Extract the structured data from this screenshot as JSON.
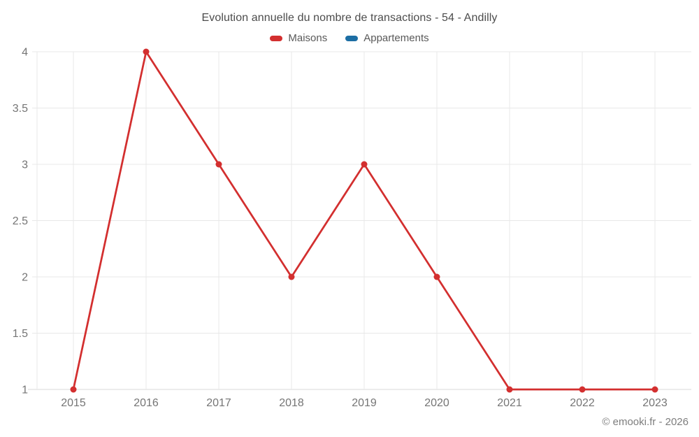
{
  "title": "Evolution annuelle du nombre de transactions - 54 - Andilly",
  "legend": [
    {
      "label": "Maisons",
      "color": "#d32f2f"
    },
    {
      "label": "Appartements",
      "color": "#1c6ea4"
    }
  ],
  "footer": "© emooki.fr - 2026",
  "colors": {
    "background": "#ffffff",
    "grid_line": "#e8e8e8",
    "axis_line": "#d9d9d9",
    "title_text": "#4c4c4c",
    "legend_text": "#595959",
    "tick_text": "#757575",
    "footer_text": "#7d7d7d",
    "maisons_red": "#d32f2f",
    "appartements_blue": "#1c6ea4"
  },
  "chart_data": {
    "type": "line",
    "title": "Evolution annuelle du nombre de transactions - 54 - Andilly",
    "categories": [
      "2015",
      "2016",
      "2017",
      "2018",
      "2019",
      "2020",
      "2021",
      "2022",
      "2023"
    ],
    "series": [
      {
        "name": "Maisons",
        "color": "#d32f2f",
        "values": [
          1,
          4,
          3,
          2,
          3,
          2,
          1,
          1,
          1
        ]
      },
      {
        "name": "Appartements",
        "color": "#1c6ea4",
        "values": []
      }
    ],
    "xlabel": "",
    "ylabel": "",
    "ylim": [
      1,
      4
    ],
    "y_tick_step": 0.5,
    "y_tick_labels": [
      "1",
      "1.5",
      "2",
      "2.5",
      "3",
      "3.5",
      "4"
    ],
    "grid": true,
    "legend_position": "top"
  }
}
